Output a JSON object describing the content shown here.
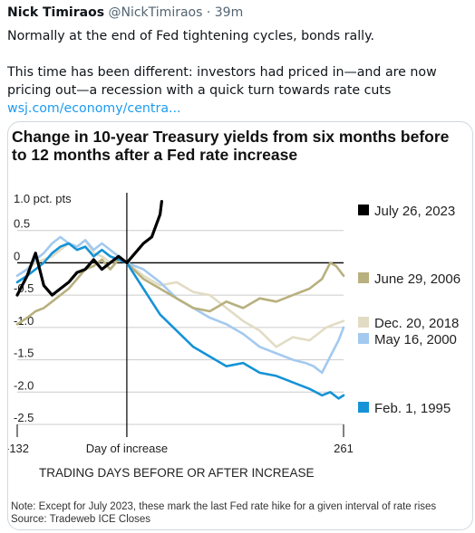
{
  "tweet": {
    "author_name": "Nick Timiraos",
    "handle": "@NickTimiraos",
    "separator": " · ",
    "time": "39m",
    "line1": "Normally at the end of Fed tightening cycles, bonds rally.",
    "line2": "This time has been different: investors had priced in—and are now pricing out—a recession with a quick turn towards rate cuts ",
    "link_text": "wsj.com/economy/centra..."
  },
  "chart_data": {
    "type": "line",
    "title": "Change in 10-year Treasury yields from six months before to 12 months after a Fed rate increase",
    "xlabel": "TRADING DAYS BEFORE OR AFTER INCREASE",
    "ylabel": "",
    "y_unit_label": "1.0 pct. pts",
    "xlim": [
      -132,
      261
    ],
    "ylim": [
      -2.5,
      1.0
    ],
    "x_ticks": [
      -132,
      0,
      261
    ],
    "x_tick_labels": [
      "-132",
      "Day of increase",
      "261"
    ],
    "y_ticks": [
      0.5,
      0,
      -0.5,
      -1.0,
      -1.5,
      -2.0,
      -2.5
    ],
    "y_tick_labels": [
      "0.5",
      "0",
      "-0.5",
      "-1.0",
      "-1.5",
      "-2.0",
      "-2.5"
    ],
    "grid": "horizontal",
    "legend": "right",
    "note": "Note: Except for July 2023, these mark the last Fed rate hike for a given interval of rate rises",
    "source": "Source: Tradeweb ICE Closes",
    "series": [
      {
        "name": "July 26, 2023",
        "color": "#000000",
        "x": [
          -132,
          -120,
          -110,
          -100,
          -90,
          -80,
          -70,
          -60,
          -50,
          -40,
          -30,
          -20,
          -10,
          0,
          10,
          20,
          30,
          40,
          42
        ],
        "y": [
          -0.5,
          -0.2,
          0.15,
          -0.35,
          -0.5,
          -0.4,
          -0.3,
          -0.15,
          -0.1,
          0.05,
          -0.1,
          0.0,
          0.1,
          0.0,
          0.15,
          0.3,
          0.4,
          0.75,
          0.95
        ]
      },
      {
        "name": "June 29, 2006",
        "color": "#b8b07e",
        "x": [
          -132,
          -120,
          -110,
          -100,
          -90,
          -80,
          -70,
          -60,
          -50,
          -40,
          -30,
          -20,
          -10,
          0,
          20,
          40,
          60,
          80,
          100,
          120,
          140,
          160,
          180,
          200,
          220,
          235,
          245,
          252,
          261
        ],
        "y": [
          -0.95,
          -0.85,
          -0.75,
          -0.7,
          -0.6,
          -0.5,
          -0.4,
          -0.25,
          -0.1,
          -0.05,
          0.05,
          -0.1,
          0.05,
          0.0,
          -0.25,
          -0.4,
          -0.55,
          -0.7,
          -0.75,
          -0.6,
          -0.7,
          -0.55,
          -0.6,
          -0.5,
          -0.4,
          -0.25,
          0.0,
          -0.05,
          -0.2
        ]
      },
      {
        "name": "Dec. 20, 2018",
        "color": "#e2dcc4",
        "x": [
          -132,
          -120,
          -110,
          -100,
          -90,
          -80,
          -70,
          -60,
          -50,
          -40,
          -30,
          -20,
          -10,
          0,
          20,
          40,
          60,
          80,
          100,
          120,
          140,
          160,
          180,
          200,
          220,
          240,
          250,
          261
        ],
        "y": [
          -0.2,
          -0.1,
          0.0,
          0.05,
          0.1,
          0.2,
          0.3,
          0.25,
          0.35,
          0.15,
          0.1,
          0.0,
          0.05,
          0.0,
          -0.2,
          -0.35,
          -0.3,
          -0.45,
          -0.5,
          -0.7,
          -0.9,
          -1.05,
          -1.3,
          -1.15,
          -1.2,
          -1.0,
          -0.95,
          -0.9
        ]
      },
      {
        "name": "May 16, 2000",
        "color": "#a3c9ef",
        "x": [
          -132,
          -120,
          -110,
          -100,
          -90,
          -80,
          -70,
          -60,
          -50,
          -40,
          -30,
          -20,
          -10,
          0,
          20,
          40,
          60,
          80,
          100,
          120,
          140,
          160,
          180,
          200,
          215,
          225,
          235,
          245,
          255,
          261
        ],
        "y": [
          -0.2,
          -0.1,
          0.05,
          0.15,
          0.3,
          0.4,
          0.3,
          0.25,
          0.35,
          0.2,
          0.3,
          0.2,
          0.1,
          0.0,
          -0.1,
          -0.3,
          -0.55,
          -0.7,
          -0.85,
          -0.95,
          -1.1,
          -1.3,
          -1.4,
          -1.5,
          -1.55,
          -1.6,
          -1.7,
          -1.45,
          -1.2,
          -1.0
        ]
      },
      {
        "name": "Feb. 1, 1995",
        "color": "#1593d6",
        "x": [
          -132,
          -120,
          -110,
          -100,
          -90,
          -80,
          -70,
          -60,
          -50,
          -40,
          -30,
          -20,
          -10,
          0,
          20,
          40,
          60,
          80,
          100,
          120,
          140,
          160,
          180,
          200,
          220,
          235,
          245,
          255,
          261
        ],
        "y": [
          -0.3,
          -0.2,
          -0.1,
          0.0,
          0.15,
          0.25,
          0.3,
          0.2,
          0.25,
          0.1,
          0.2,
          0.1,
          0.05,
          0.0,
          -0.4,
          -0.8,
          -1.05,
          -1.3,
          -1.45,
          -1.6,
          -1.55,
          -1.7,
          -1.75,
          -1.85,
          -1.95,
          -2.05,
          -2.0,
          -2.1,
          -2.05
        ]
      }
    ]
  }
}
